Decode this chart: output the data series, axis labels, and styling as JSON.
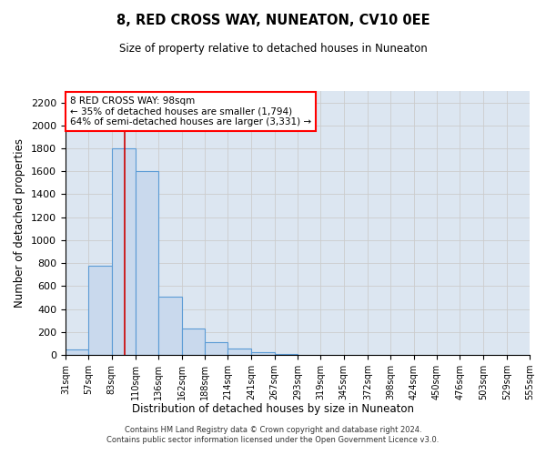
{
  "title": "8, RED CROSS WAY, NUNEATON, CV10 0EE",
  "subtitle": "Size of property relative to detached houses in Nuneaton",
  "xlabel": "Distribution of detached houses by size in Nuneaton",
  "ylabel": "Number of detached properties",
  "annotation_line1": "8 RED CROSS WAY: 98sqm",
  "annotation_line2": "← 35% of detached houses are smaller (1,794)",
  "annotation_line3": "64% of semi-detached houses are larger (3,331) →",
  "red_line_x": 98,
  "bar_edges": [
    31,
    57,
    83,
    110,
    136,
    162,
    188,
    214,
    241,
    267,
    293,
    319,
    345,
    372,
    398,
    424,
    450,
    476,
    503,
    529,
    555
  ],
  "bar_heights": [
    50,
    780,
    1800,
    1600,
    510,
    230,
    110,
    55,
    25,
    10,
    0,
    0,
    0,
    0,
    0,
    0,
    0,
    0,
    0,
    0
  ],
  "bar_color": "#c9d9ed",
  "bar_edge_color": "#5b9bd5",
  "red_line_color": "#cc0000",
  "grid_color": "#cccccc",
  "bg_color": "#dce6f1",
  "ylim": [
    0,
    2300
  ],
  "yticks": [
    0,
    200,
    400,
    600,
    800,
    1000,
    1200,
    1400,
    1600,
    1800,
    2000,
    2200
  ],
  "footer_line1": "Contains HM Land Registry data © Crown copyright and database right 2024.",
  "footer_line2": "Contains public sector information licensed under the Open Government Licence v3.0."
}
